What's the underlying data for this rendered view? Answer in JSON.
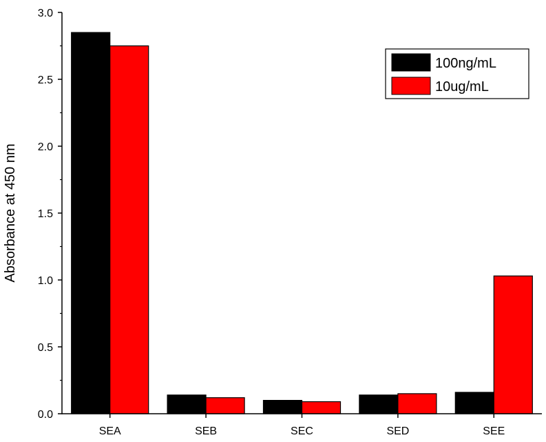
{
  "chart_data": {
    "type": "bar",
    "title": "",
    "xlabel": "",
    "ylabel": "Absorbance at 450 nm",
    "categories": [
      "SEA",
      "SEB",
      "SEC",
      "SED",
      "SEE"
    ],
    "ylim": [
      0,
      3.0
    ],
    "yticks": [
      "0.0",
      "0.5",
      "1.0",
      "1.5",
      "2.0",
      "2.5",
      "3.0"
    ],
    "series": [
      {
        "name": "100ng/mL",
        "color": "#000000",
        "values": [
          2.85,
          0.14,
          0.1,
          0.14,
          0.16
        ]
      },
      {
        "name": "10ug/mL",
        "color": "#ff0000",
        "values": [
          2.75,
          0.12,
          0.09,
          0.15,
          1.03
        ]
      }
    ],
    "grid": false,
    "legend_position": "top-right"
  }
}
